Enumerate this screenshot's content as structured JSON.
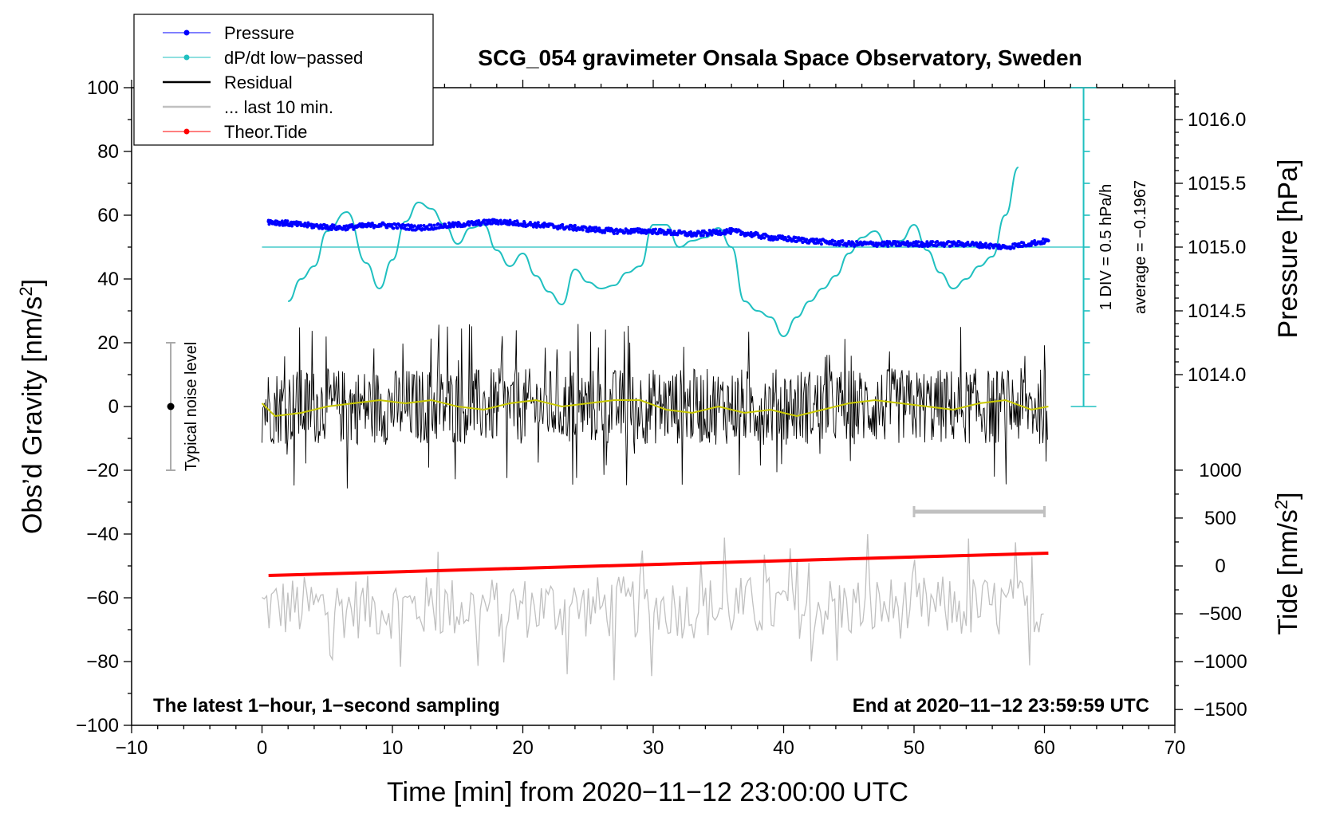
{
  "chart_data": {
    "type": "line",
    "title": "SCG_054 gravimeter Onsala Space Observatory, Sweden",
    "xlabel": "Time [min] from 2020−11−12 23:00:00 UTC",
    "ylabel_main": "Obs’d Gravity [nm/s",
    "ylabel_sup": "2",
    "ylabel_close": "]",
    "ylabel_pressure": "Pressure [hPa]",
    "ylabel_tide": "Tide [nm/s",
    "ylabel_tide_sup": "2",
    "ylabel_tide_close": "]",
    "xlim": [
      -10,
      70
    ],
    "ylim": [
      -100,
      100
    ],
    "x_ticks": [
      "−10",
      "0",
      "10",
      "20",
      "30",
      "40",
      "50",
      "60",
      "70"
    ],
    "y_ticks": [
      "100",
      "80",
      "60",
      "40",
      "20",
      "0",
      "−20",
      "−40",
      "−60",
      "−80",
      "−100"
    ],
    "pressure_ticks": [
      "1016.0",
      "1015.5",
      "1015.0",
      "1014.5",
      "1014.0"
    ],
    "pressure_tick_values": [
      1016.0,
      1015.5,
      1015.0,
      1014.5,
      1014.0
    ],
    "pressure_map": {
      "ref_hpa": 1015.0,
      "ref_y": 50,
      "hpa_per_unit": 0.025
    },
    "tide_ticks": [
      "1000",
      "500",
      "0",
      "−500",
      "−1000",
      "−1500"
    ],
    "tide_tick_values": [
      1000,
      500,
      0,
      -500,
      -1000,
      -1500
    ],
    "tide_map": {
      "ref_nms2": 0,
      "ref_y": -50,
      "nms2_per_unit": 33.3
    },
    "legend": [
      {
        "label": "Pressure",
        "color": "#0000ff",
        "marker": true
      },
      {
        "label": "dP/dt low−passed",
        "color": "#20c0c0",
        "marker": true
      },
      {
        "label": "Residual",
        "color": "#000000",
        "marker": false
      },
      {
        "label": "... last 10 min.",
        "color": "#c0c0c0",
        "marker": false
      },
      {
        "label": "Theor.Tide",
        "color": "#ff0000",
        "marker": true
      }
    ],
    "annotations": {
      "bottom_left": "The latest 1−hour, 1−second sampling",
      "bottom_right": "End at 2020−11−12 23:59:59 UTC",
      "noise_label": "Typical noise level",
      "div_label": "1 DIV = 0.5 hPa/h",
      "average_label": "average = −0.1967"
    },
    "noise_bar": {
      "x": -7,
      "y_center": 0,
      "half_range": 20
    },
    "dpdt_scale_bar": {
      "x": 63,
      "y_top": 100,
      "y_bottom": 0,
      "divisions": 10
    },
    "last10_bar": {
      "x_start": 50,
      "x_end": 60,
      "y": -33
    },
    "dpdt_zero_line": {
      "x_start": 0,
      "x_end": 63,
      "y": 50
    },
    "series": [
      {
        "name": "Pressure",
        "color": "#0000ff",
        "x": [
          0.5,
          3,
          6,
          9,
          12,
          15,
          18,
          21,
          24,
          27,
          30,
          33,
          36,
          39,
          42,
          45,
          48,
          51,
          54,
          57,
          60.3
        ],
        "y": [
          58,
          57,
          56,
          57,
          56,
          57,
          58,
          57,
          56,
          55,
          55,
          54,
          55,
          53,
          52,
          51,
          51,
          51,
          51,
          50,
          52
        ]
      },
      {
        "name": "dP/dt low-passed",
        "color": "#20c0c0",
        "x": [
          2,
          3,
          4,
          5,
          6.5,
          8,
          9,
          10,
          11,
          12,
          13,
          14,
          15,
          16,
          17,
          18,
          19,
          20,
          21,
          22,
          23,
          24,
          25,
          26,
          27,
          28,
          29,
          30,
          31,
          32,
          33,
          34,
          35,
          36,
          37,
          38,
          39,
          40,
          41,
          42,
          43,
          44,
          45,
          46,
          47,
          48,
          49,
          50,
          51,
          52,
          53,
          54,
          55,
          56,
          57,
          58
        ],
        "y": [
          33,
          40,
          44,
          55,
          61,
          45,
          37,
          46,
          58,
          64,
          62,
          57,
          51,
          56,
          57,
          49,
          44,
          48,
          41,
          36,
          32,
          43,
          39,
          37,
          38,
          42,
          44,
          57,
          57,
          50,
          52,
          53,
          56,
          50,
          33,
          30,
          28,
          22,
          28,
          33,
          37,
          41,
          48,
          53,
          55,
          50,
          52,
          57,
          49,
          42,
          37,
          40,
          44,
          47,
          60,
          75
        ]
      },
      {
        "name": "Residual",
        "color": "#000000",
        "x_range": [
          0,
          60.3
        ],
        "amplitude": 12,
        "peak_amplitude": 26
      },
      {
        "name": "Residual smoothed",
        "color": "#c8c800",
        "x": [
          0,
          1,
          3,
          5,
          7,
          9,
          11,
          13,
          15,
          17,
          19,
          21,
          23,
          25,
          27,
          29,
          31,
          33,
          35,
          37,
          39,
          41,
          43,
          45,
          47,
          49,
          51,
          53,
          55,
          57,
          59,
          60.3
        ],
        "y": [
          1,
          -3,
          -2,
          0,
          1,
          2,
          1,
          2,
          0,
          -1,
          1,
          2,
          0,
          1,
          2,
          2,
          -1,
          -2,
          0,
          -2,
          -1,
          -3,
          -1,
          1,
          2,
          1,
          0,
          -1,
          1,
          2,
          -1,
          0
        ]
      },
      {
        "name": "... last 10 min.",
        "color": "#c0c0c0",
        "x_range": [
          0,
          60
        ],
        "center": -63,
        "amplitude": 10,
        "peak_amplitude": 23
      },
      {
        "name": "Theor.Tide",
        "color": "#ff0000",
        "x": [
          0.5,
          60.3
        ],
        "y": [
          -53,
          -46
        ]
      }
    ]
  }
}
